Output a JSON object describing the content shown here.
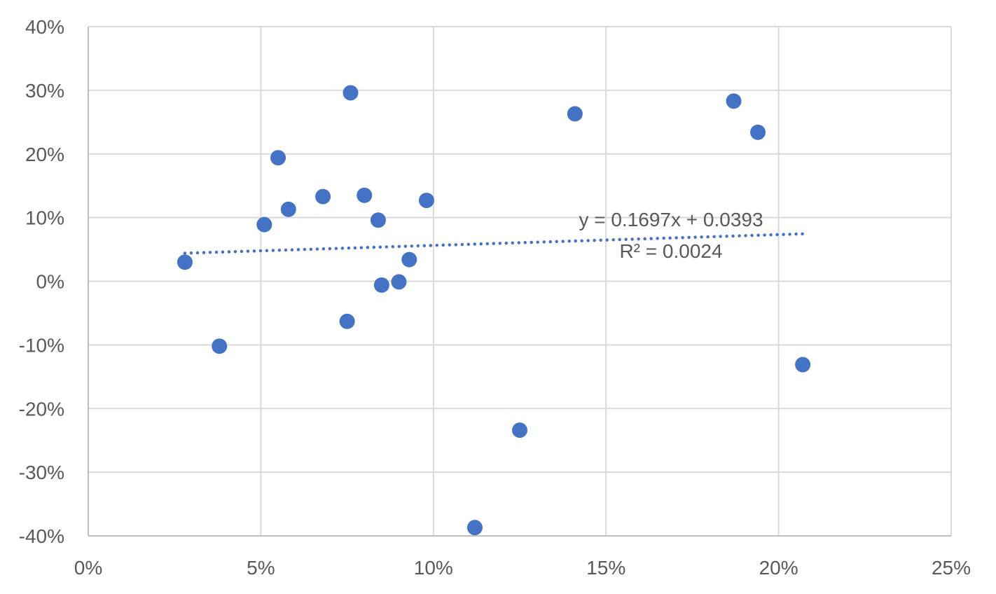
{
  "chart_data": {
    "type": "scatter",
    "title": "",
    "xlabel": "",
    "ylabel": "",
    "xlim": [
      0,
      0.25
    ],
    "ylim": [
      -0.4,
      0.4
    ],
    "x_ticks": [
      0,
      0.05,
      0.1,
      0.15,
      0.2,
      0.25
    ],
    "x_tick_labels": [
      "0%",
      "5%",
      "10%",
      "15%",
      "20%",
      "25%"
    ],
    "y_ticks": [
      0.4,
      0.3,
      0.2,
      0.1,
      0,
      -0.1,
      -0.2,
      -0.3,
      -0.4
    ],
    "y_tick_labels": [
      "40%",
      "30%",
      "20%",
      "10%",
      "0%",
      "-10%",
      "-20%",
      "-30%",
      "-40%"
    ],
    "grid": true,
    "legend": "none",
    "marker_color": "#4472c4",
    "series": [
      {
        "points": [
          {
            "x": 0.028,
            "y": 0.03
          },
          {
            "x": 0.038,
            "y": -0.102
          },
          {
            "x": 0.051,
            "y": 0.089
          },
          {
            "x": 0.055,
            "y": 0.194
          },
          {
            "x": 0.058,
            "y": 0.113
          },
          {
            "x": 0.068,
            "y": 0.133
          },
          {
            "x": 0.075,
            "y": -0.063
          },
          {
            "x": 0.076,
            "y": 0.296
          },
          {
            "x": 0.08,
            "y": 0.135
          },
          {
            "x": 0.084,
            "y": 0.096
          },
          {
            "x": 0.085,
            "y": -0.006
          },
          {
            "x": 0.09,
            "y": -0.001
          },
          {
            "x": 0.093,
            "y": 0.034
          },
          {
            "x": 0.098,
            "y": 0.127
          },
          {
            "x": 0.112,
            "y": -0.387
          },
          {
            "x": 0.125,
            "y": -0.234
          },
          {
            "x": 0.141,
            "y": 0.263
          },
          {
            "x": 0.187,
            "y": 0.283
          },
          {
            "x": 0.194,
            "y": 0.234
          },
          {
            "x": 0.207,
            "y": -0.131
          }
        ]
      }
    ],
    "trendline": {
      "type": "linear",
      "slope": 0.1697,
      "intercept": 0.0393,
      "x_range": [
        0.028,
        0.207
      ],
      "equation_label": "y = 0.1697x + 0.0393",
      "r2_label": "R² = 0.0024"
    }
  }
}
